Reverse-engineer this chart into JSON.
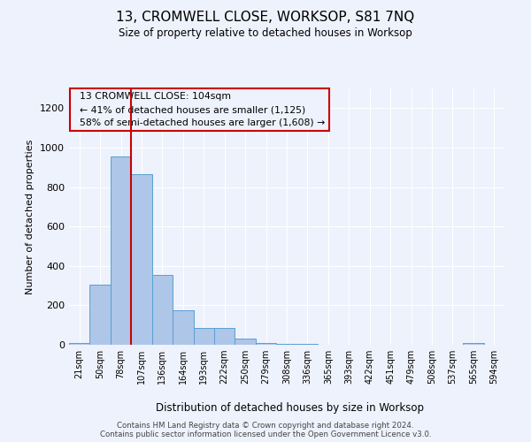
{
  "title": "13, CROMWELL CLOSE, WORKSOP, S81 7NQ",
  "subtitle": "Size of property relative to detached houses in Worksop",
  "xlabel": "Distribution of detached houses by size in Worksop",
  "ylabel": "Number of detached properties",
  "footnote1": "Contains HM Land Registry data © Crown copyright and database right 2024.",
  "footnote2": "Contains public sector information licensed under the Open Government Licence v3.0.",
  "annotation_line1": "13 CROMWELL CLOSE: 104sqm",
  "annotation_line2": "← 41% of detached houses are smaller (1,125)",
  "annotation_line3": "58% of semi-detached houses are larger (1,608) →",
  "bar_color": "#aec6e8",
  "bar_edge_color": "#5a9fd4",
  "red_line_color": "#cc0000",
  "background_color": "#eef2fc",
  "grid_color": "#ffffff",
  "categories": [
    "21sqm",
    "50sqm",
    "78sqm",
    "107sqm",
    "136sqm",
    "164sqm",
    "193sqm",
    "222sqm",
    "250sqm",
    "279sqm",
    "308sqm",
    "336sqm",
    "365sqm",
    "393sqm",
    "422sqm",
    "451sqm",
    "479sqm",
    "508sqm",
    "537sqm",
    "565sqm",
    "594sqm"
  ],
  "values": [
    10,
    305,
    955,
    865,
    355,
    175,
    85,
    85,
    30,
    10,
    3,
    3,
    2,
    2,
    1,
    1,
    1,
    0,
    0,
    10,
    0
  ],
  "red_line_index": 2.5,
  "ylim": [
    0,
    1300
  ],
  "yticks": [
    0,
    200,
    400,
    600,
    800,
    1000,
    1200
  ]
}
